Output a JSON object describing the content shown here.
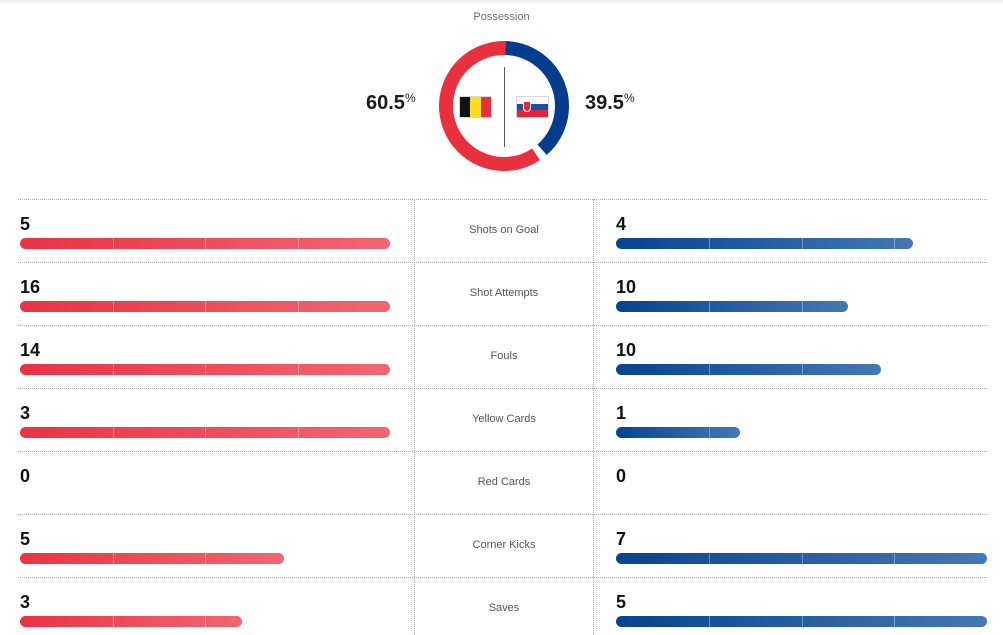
{
  "possession": {
    "title": "Possession",
    "home": {
      "team_flag": "belgium-flag",
      "value": "60.5",
      "unit": "%",
      "color": "#e8303f"
    },
    "away": {
      "team_flag": "slovakia-flag",
      "value": "39.5",
      "unit": "%",
      "color": "#053c8c"
    }
  },
  "colors": {
    "home_bar_start": "#ea3344",
    "home_bar_end": "#f26671",
    "away_bar_start": "#07448f",
    "away_bar_end": "#4478b4",
    "divider": "#a9a9a9"
  },
  "stats": [
    {
      "label": "Shots on Goal",
      "home": "5",
      "away": "4",
      "home_pct": 100,
      "away_pct": 80
    },
    {
      "label": "Shot Attempts",
      "home": "16",
      "away": "10",
      "home_pct": 100,
      "away_pct": 62.5
    },
    {
      "label": "Fouls",
      "home": "14",
      "away": "10",
      "home_pct": 100,
      "away_pct": 71.4
    },
    {
      "label": "Yellow Cards",
      "home": "3",
      "away": "1",
      "home_pct": 100,
      "away_pct": 33.3
    },
    {
      "label": "Red Cards",
      "home": "0",
      "away": "0",
      "home_pct": 0,
      "away_pct": 0
    },
    {
      "label": "Corner Kicks",
      "home": "5",
      "away": "7",
      "home_pct": 71.4,
      "away_pct": 100
    },
    {
      "label": "Saves",
      "home": "3",
      "away": "5",
      "home_pct": 60,
      "away_pct": 100
    }
  ]
}
